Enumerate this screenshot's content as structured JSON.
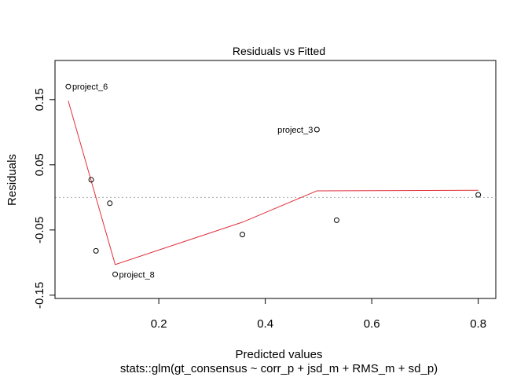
{
  "chart_data": {
    "type": "scatter",
    "title": "Residuals vs Fitted",
    "xlabel": "Predicted values",
    "subtitle": "stats::glm(gt_consensus ~ corr_p + jsd_m + RMS_m + sd_p)",
    "ylabel": "Residuals",
    "xlim": [
      0.005,
      0.833
    ],
    "ylim": [
      -0.155,
      0.21
    ],
    "xticks": [
      0.2,
      0.4,
      0.6,
      0.8
    ],
    "xtick_labels": [
      "0.2",
      "0.4",
      "0.6",
      "0.8"
    ],
    "yticks": [
      -0.15,
      -0.05,
      0.05,
      0.15
    ],
    "ytick_labels": [
      "-0.15",
      "-0.05",
      "0.05",
      "0.15"
    ],
    "grid": false,
    "reference_line_y": 0,
    "points": [
      {
        "x": 0.03,
        "y": 0.17,
        "label": "project_6"
      },
      {
        "x": 0.073,
        "y": 0.027,
        "label": ""
      },
      {
        "x": 0.082,
        "y": -0.082,
        "label": ""
      },
      {
        "x": 0.108,
        "y": -0.009,
        "label": ""
      },
      {
        "x": 0.118,
        "y": -0.118,
        "label": "project_8"
      },
      {
        "x": 0.357,
        "y": -0.057,
        "label": ""
      },
      {
        "x": 0.497,
        "y": 0.104,
        "label": "project_3"
      },
      {
        "x": 0.534,
        "y": -0.035,
        "label": ""
      },
      {
        "x": 0.8,
        "y": 0.004,
        "label": ""
      }
    ],
    "smooth_line": {
      "color": "#e0303c",
      "x": [
        0.03,
        0.118,
        0.357,
        0.497,
        0.8
      ],
      "y": [
        0.148,
        -0.103,
        -0.038,
        0.01,
        0.011
      ]
    },
    "colors": {
      "points": "#000000",
      "reference_line": "#aaaaaa"
    }
  }
}
